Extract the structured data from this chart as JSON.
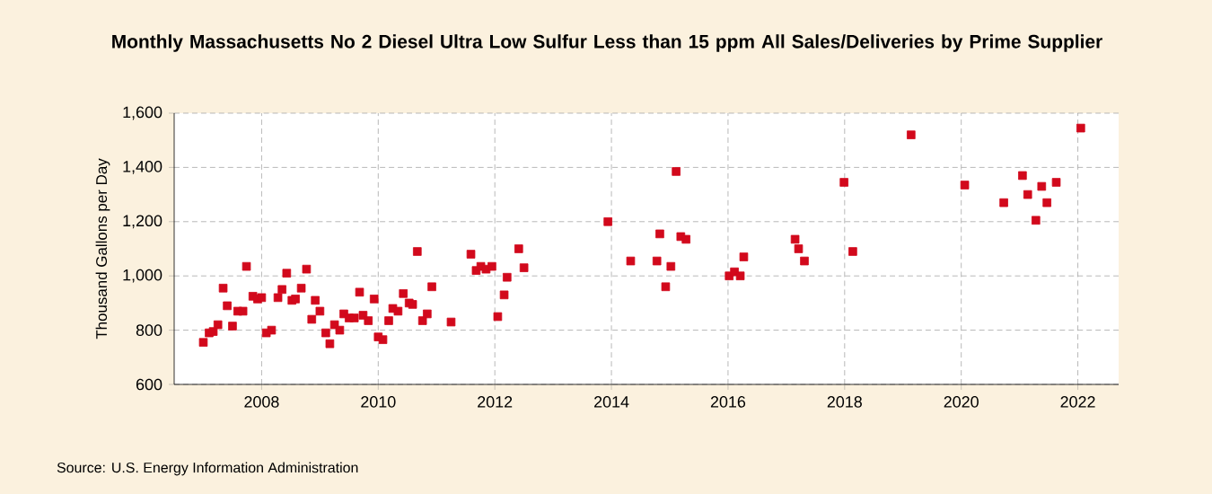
{
  "chart_data": {
    "type": "scatter",
    "title": "Monthly Massachusetts No 2 Diesel Ultra Low Sulfur Less than 15 ppm All Sales/Deliveries by Prime Supplier",
    "ylabel": "Thousand Gallons per Day",
    "annotations": [
      "Source: U.S. Energy Information Administration"
    ],
    "x": [
      2007.0,
      2007.1,
      2007.17,
      2007.25,
      2007.34,
      2007.41,
      2007.5,
      2007.59,
      2007.68,
      2007.74,
      2007.85,
      2007.93,
      2008.0,
      2008.08,
      2008.17,
      2008.28,
      2008.35,
      2008.43,
      2008.52,
      2008.58,
      2008.68,
      2008.77,
      2008.86,
      2008.92,
      2009.0,
      2009.1,
      2009.17,
      2009.25,
      2009.34,
      2009.41,
      2009.5,
      2009.59,
      2009.68,
      2009.74,
      2009.83,
      2009.93,
      2010.0,
      2010.08,
      2010.18,
      2010.25,
      2010.34,
      2010.43,
      2010.53,
      2010.59,
      2010.67,
      2010.76,
      2010.84,
      2010.92,
      2011.25,
      2011.59,
      2011.68,
      2011.76,
      2011.85,
      2011.95,
      2012.05,
      2012.16,
      2012.21,
      2012.41,
      2012.5,
      2013.94,
      2014.33,
      2014.78,
      2014.83,
      2014.93,
      2015.02,
      2015.11,
      2015.19,
      2015.28,
      2016.02,
      2016.11,
      2016.21,
      2016.27,
      2017.15,
      2017.21,
      2017.31,
      2017.99,
      2018.14,
      2019.14,
      2020.06,
      2020.73,
      2021.05,
      2021.14,
      2021.28,
      2021.38,
      2021.47,
      2021.63,
      2022.05
    ],
    "values": [
      755,
      790,
      795,
      820,
      955,
      890,
      815,
      870,
      870,
      1035,
      925,
      915,
      920,
      790,
      800,
      920,
      950,
      1010,
      910,
      915,
      955,
      1025,
      840,
      910,
      870,
      790,
      750,
      820,
      800,
      860,
      845,
      845,
      940,
      855,
      835,
      915,
      775,
      765,
      835,
      880,
      870,
      935,
      900,
      895,
      1090,
      835,
      860,
      960,
      830,
      1080,
      1020,
      1035,
      1025,
      1035,
      850,
      930,
      995,
      1100,
      1030,
      1200,
      1055,
      1055,
      1155,
      960,
      1035,
      1385,
      1145,
      1135,
      1000,
      1015,
      1000,
      1070,
      1135,
      1100,
      1055,
      1345,
      1090,
      1520,
      1335,
      1270,
      1370,
      1300,
      1205,
      1330,
      1270,
      1345,
      1545
    ],
    "color": "#d2091c",
    "marker": "square",
    "grid": true,
    "xlim": [
      2006.5,
      2022.7
    ],
    "xticks": [
      2008,
      2010,
      2012,
      2014,
      2016,
      2018,
      2020,
      2022
    ],
    "ylim": [
      600,
      1600
    ],
    "yticks": [
      {
        "value": 600,
        "label": "600"
      },
      {
        "value": 800,
        "label": "800"
      },
      {
        "value": 1000,
        "label": "1,000"
      },
      {
        "value": 1200,
        "label": "1,200"
      },
      {
        "value": 1400,
        "label": "1,400"
      },
      {
        "value": 1600,
        "label": "1,600"
      }
    ]
  }
}
